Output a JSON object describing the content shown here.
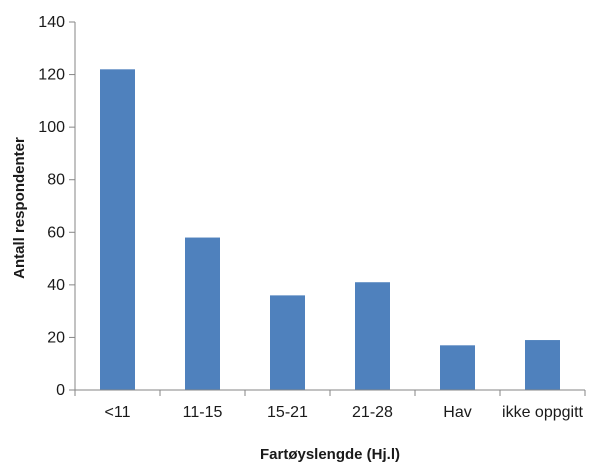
{
  "chart_data": {
    "type": "bar",
    "categories": [
      "<11",
      "11-15",
      "15-21",
      "21-28",
      "Hav",
      "ikke oppgitt"
    ],
    "values": [
      122,
      58,
      36,
      41,
      17,
      19
    ],
    "xlabel": "Fartøyslengde (Hj.l)",
    "ylabel": "Antall respondenter",
    "ylim": [
      0,
      140
    ],
    "yticks": [
      0,
      20,
      40,
      60,
      80,
      100,
      120,
      140
    ],
    "ytick_labels": [
      "0",
      "20",
      "40",
      "60",
      "80",
      "100",
      "120",
      "140"
    ],
    "grid": false,
    "legend": "none",
    "bar_color": "#4f81bd",
    "axis_color": "#868686"
  }
}
